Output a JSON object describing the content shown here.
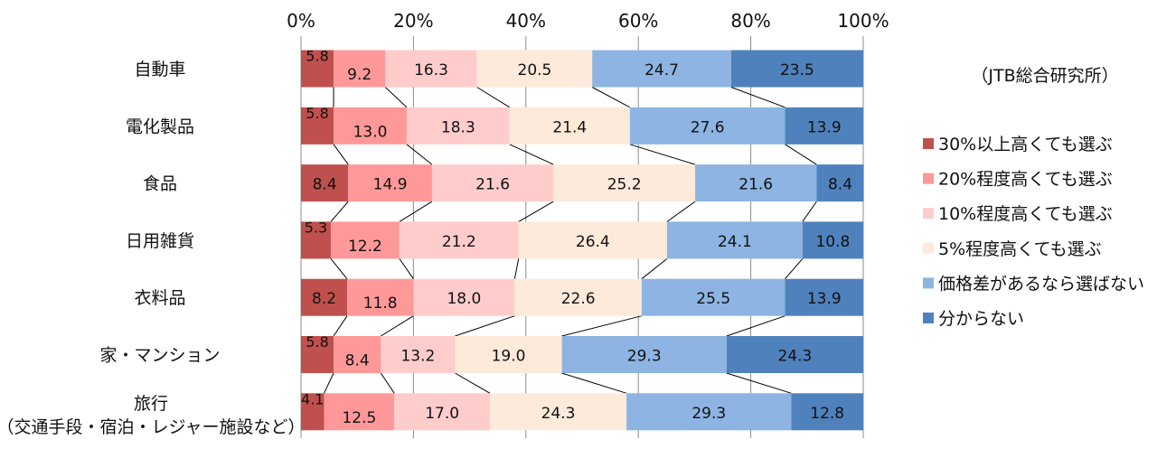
{
  "chart_data": {
    "type": "bar",
    "orientation": "horizontal",
    "stacked": "percent",
    "source_note": "（JTB総合研究所）",
    "categories": [
      [
        "自動車"
      ],
      [
        "電化製品"
      ],
      [
        "食品"
      ],
      [
        "日用雑貨"
      ],
      [
        "衣料品"
      ],
      [
        "家・マンション"
      ],
      [
        "旅行",
        "（交通手段・宿泊・レジャー施設など）"
      ]
    ],
    "xlim": [
      0,
      100
    ],
    "x_ticks": [
      "0%",
      "20%",
      "40%",
      "60%",
      "80%",
      "100%"
    ],
    "grid": true,
    "legend_position": "right",
    "series": [
      {
        "name": "30%以上高くても選ぶ",
        "color": "#C0504D",
        "values": [
          5.8,
          5.8,
          8.4,
          5.3,
          8.2,
          5.8,
          4.1
        ]
      },
      {
        "name": "20%程度高くても選ぶ",
        "color": "#FF9999",
        "values": [
          9.2,
          13.0,
          14.9,
          12.2,
          11.8,
          8.4,
          12.5
        ]
      },
      {
        "name": "10%程度高くても選ぶ",
        "color": "#FFCCCC",
        "values": [
          16.3,
          18.3,
          21.6,
          21.2,
          18.0,
          13.2,
          17.0
        ]
      },
      {
        "name": "5%程度高くても選ぶ",
        "color": "#FDEADA",
        "values": [
          20.5,
          21.4,
          25.2,
          26.4,
          22.6,
          19.0,
          24.3
        ]
      },
      {
        "name": "価格差があるなら選ばない",
        "color": "#8DB4E2",
        "values": [
          24.7,
          27.6,
          21.6,
          24.1,
          25.5,
          29.3,
          29.3
        ]
      },
      {
        "name": "分からない",
        "color": "#4F81BD",
        "values": [
          23.5,
          13.9,
          8.4,
          10.8,
          13.9,
          24.3,
          12.8
        ]
      }
    ]
  }
}
